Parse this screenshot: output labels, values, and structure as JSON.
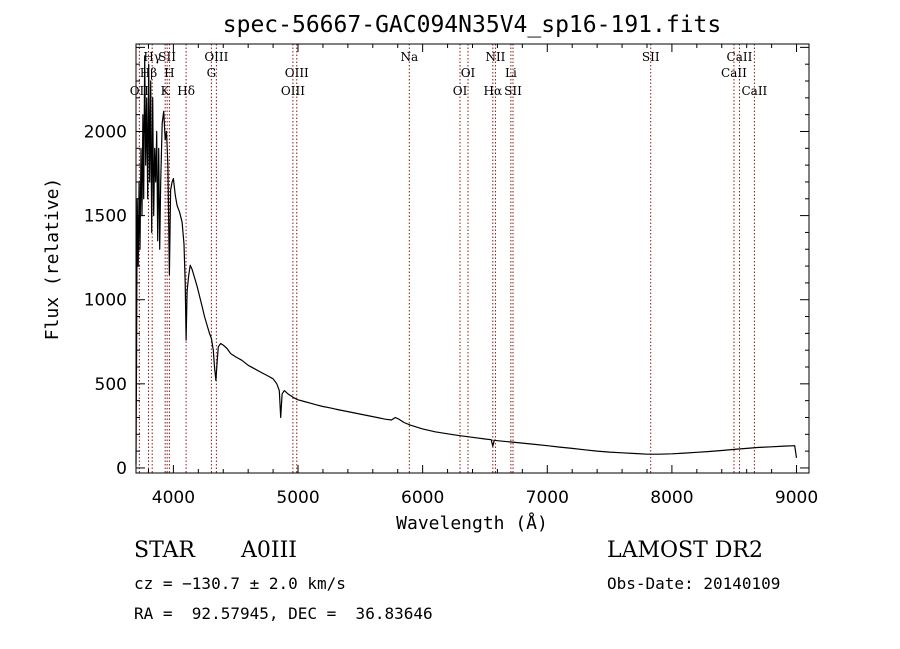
{
  "chart_data": {
    "type": "line",
    "title": "spec-56667-GAC094N35V4_sp16-191.fits",
    "xlabel": "Wavelength (Å)",
    "ylabel": "Flux (relative)",
    "xlim": [
      3700,
      9100
    ],
    "ylim": [
      -30,
      2520
    ],
    "xticks": [
      4000,
      5000,
      6000,
      7000,
      8000,
      9000
    ],
    "yticks": [
      0,
      500,
      1000,
      1500,
      2000
    ],
    "grid": false,
    "line_color": "#000000",
    "marker_color": "#8b1a1a",
    "lines": [
      {
        "label": "Hγ",
        "x": 3830,
        "row": 0
      },
      {
        "label": "SII",
        "x": 3950,
        "row": 0
      },
      {
        "label": "OIII",
        "x": 4345,
        "row": 0
      },
      {
        "label": "Na",
        "x": 5893,
        "row": 0
      },
      {
        "label": "NII",
        "x": 6584,
        "row": 0
      },
      {
        "label": "SII",
        "x": 7830,
        "row": 0
      },
      {
        "label": "CaII",
        "x": 8542,
        "row": 0
      },
      {
        "label": "Hβ",
        "x": 3800,
        "row": 1
      },
      {
        "label": "H",
        "x": 3968,
        "row": 1
      },
      {
        "label": "G",
        "x": 4305,
        "row": 1
      },
      {
        "label": "OIII",
        "x": 4990,
        "row": 1
      },
      {
        "label": "OI",
        "x": 6364,
        "row": 1
      },
      {
        "label": "Li",
        "x": 6708,
        "row": 1
      },
      {
        "label": "CaII",
        "x": 8498,
        "row": 1
      },
      {
        "label": "OII",
        "x": 3727,
        "row": 2
      },
      {
        "label": "K",
        "x": 3934,
        "row": 2
      },
      {
        "label": "Hδ",
        "x": 4102,
        "row": 2
      },
      {
        "label": "OIII",
        "x": 4959,
        "row": 2
      },
      {
        "label": "OI",
        "x": 6300,
        "row": 2
      },
      {
        "label": "Hα",
        "x": 6563,
        "row": 2
      },
      {
        "label": "SII",
        "x": 6725,
        "row": 2
      },
      {
        "label": "CaII",
        "x": 8662,
        "row": 2
      }
    ],
    "series": [
      {
        "points": [
          [
            3700,
            20
          ],
          [
            3705,
            700
          ],
          [
            3710,
            1600
          ],
          [
            3718,
            1200
          ],
          [
            3725,
            1700
          ],
          [
            3732,
            1300
          ],
          [
            3740,
            1900
          ],
          [
            3748,
            1500
          ],
          [
            3755,
            2100
          ],
          [
            3762,
            1600
          ],
          [
            3770,
            2450
          ],
          [
            3778,
            1800
          ],
          [
            3786,
            2200
          ],
          [
            3794,
            1600
          ],
          [
            3802,
            2400
          ],
          [
            3810,
            1700
          ],
          [
            3818,
            2300
          ],
          [
            3826,
            1400
          ],
          [
            3834,
            2200
          ],
          [
            3842,
            1500
          ],
          [
            3850,
            1900
          ],
          [
            3858,
            1700
          ],
          [
            3866,
            2000
          ],
          [
            3874,
            1350
          ],
          [
            3882,
            1900
          ],
          [
            3890,
            1300
          ],
          [
            3898,
            1700
          ],
          [
            3910,
            2050
          ],
          [
            3922,
            2120
          ],
          [
            3934,
            1950
          ],
          [
            3945,
            2000
          ],
          [
            3956,
            1800
          ],
          [
            3968,
            1150
          ],
          [
            3978,
            1650
          ],
          [
            3990,
            1700
          ],
          [
            4000,
            1720
          ],
          [
            4015,
            1620
          ],
          [
            4030,
            1560
          ],
          [
            4050,
            1520
          ],
          [
            4070,
            1460
          ],
          [
            4085,
            1330
          ],
          [
            4095,
            1100
          ],
          [
            4102,
            760
          ],
          [
            4110,
            1050
          ],
          [
            4122,
            1140
          ],
          [
            4135,
            1205
          ],
          [
            4150,
            1180
          ],
          [
            4170,
            1130
          ],
          [
            4190,
            1080
          ],
          [
            4210,
            1020
          ],
          [
            4230,
            960
          ],
          [
            4250,
            900
          ],
          [
            4270,
            850
          ],
          [
            4290,
            800
          ],
          [
            4305,
            770
          ],
          [
            4320,
            700
          ],
          [
            4330,
            600
          ],
          [
            4341,
            520
          ],
          [
            4350,
            620
          ],
          [
            4360,
            720
          ],
          [
            4380,
            740
          ],
          [
            4400,
            730
          ],
          [
            4430,
            710
          ],
          [
            4460,
            680
          ],
          [
            4500,
            660
          ],
          [
            4550,
            640
          ],
          [
            4600,
            610
          ],
          [
            4650,
            590
          ],
          [
            4700,
            570
          ],
          [
            4750,
            550
          ],
          [
            4800,
            530
          ],
          [
            4830,
            500
          ],
          [
            4850,
            460
          ],
          [
            4861,
            300
          ],
          [
            4872,
            440
          ],
          [
            4890,
            460
          ],
          [
            4920,
            440
          ],
          [
            4960,
            420
          ],
          [
            5000,
            405
          ],
          [
            5050,
            395
          ],
          [
            5100,
            385
          ],
          [
            5150,
            375
          ],
          [
            5200,
            365
          ],
          [
            5250,
            358
          ],
          [
            5300,
            350
          ],
          [
            5400,
            335
          ],
          [
            5500,
            320
          ],
          [
            5600,
            305
          ],
          [
            5700,
            290
          ],
          [
            5750,
            285
          ],
          [
            5780,
            300
          ],
          [
            5810,
            290
          ],
          [
            5850,
            270
          ],
          [
            5900,
            255
          ],
          [
            6000,
            232
          ],
          [
            6100,
            215
          ],
          [
            6200,
            203
          ],
          [
            6300,
            192
          ],
          [
            6400,
            182
          ],
          [
            6500,
            172
          ],
          [
            6550,
            168
          ],
          [
            6563,
            130
          ],
          [
            6575,
            165
          ],
          [
            6600,
            162
          ],
          [
            6700,
            155
          ],
          [
            6800,
            148
          ],
          [
            6900,
            140
          ],
          [
            7000,
            132
          ],
          [
            7100,
            124
          ],
          [
            7200,
            116
          ],
          [
            7300,
            108
          ],
          [
            7400,
            100
          ],
          [
            7500,
            94
          ],
          [
            7600,
            90
          ],
          [
            7700,
            86
          ],
          [
            7800,
            82
          ],
          [
            7900,
            82
          ],
          [
            8000,
            84
          ],
          [
            8100,
            88
          ],
          [
            8200,
            93
          ],
          [
            8300,
            98
          ],
          [
            8400,
            104
          ],
          [
            8500,
            110
          ],
          [
            8600,
            116
          ],
          [
            8700,
            122
          ],
          [
            8800,
            126
          ],
          [
            8900,
            130
          ],
          [
            8985,
            132
          ],
          [
            9000,
            60
          ]
        ]
      }
    ]
  },
  "info": {
    "object_class": "STAR",
    "subclass": "A0III",
    "redshift": "cz = −130.7 ± 2.0 km/s",
    "coordinates": "RA =  92.57945, DEC =  36.83646",
    "survey": "LAMOST DR2",
    "obs_date": "Obs-Date: 20140109"
  }
}
